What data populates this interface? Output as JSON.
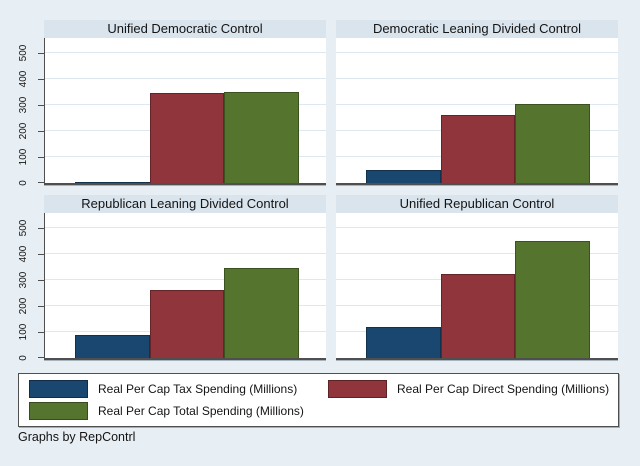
{
  "colors": {
    "background": "#e8eff4",
    "panel_title_bg": "#d9e4ed",
    "plot_bg": "#ffffff",
    "gridline": "#dde8f0",
    "axis": "#4f4f4f",
    "text": "#141414"
  },
  "chart_data": {
    "type": "bar",
    "layout": "2x2-panel-grid",
    "title": "",
    "xlabel": "",
    "ylabel": "",
    "ylim": [
      0,
      500
    ],
    "yticks": [
      0,
      100,
      200,
      300,
      400,
      500
    ],
    "grid": true,
    "legend_position": "bottom",
    "series": [
      {
        "name": "Real Per Cap Tax Spending (Millions)",
        "color": "#1a476f"
      },
      {
        "name": "Real Per Cap Direct Spending (Millions)",
        "color": "#90353b"
      },
      {
        "name": "Real Per Cap Total Spending (Millions)",
        "color": "#55752f"
      }
    ],
    "panels": [
      {
        "title": "Unified Democratic Control",
        "values": [
          5,
          345,
          350
        ]
      },
      {
        "title": "Democratic Leaning Divided Control",
        "values": [
          50,
          260,
          305
        ]
      },
      {
        "title": "Republican Leaning Divided Control",
        "values": [
          90,
          260,
          345
        ]
      },
      {
        "title": "Unified Republican Control",
        "values": [
          120,
          325,
          450
        ]
      }
    ]
  },
  "footer": {
    "note": "Graphs by RepContrl"
  }
}
